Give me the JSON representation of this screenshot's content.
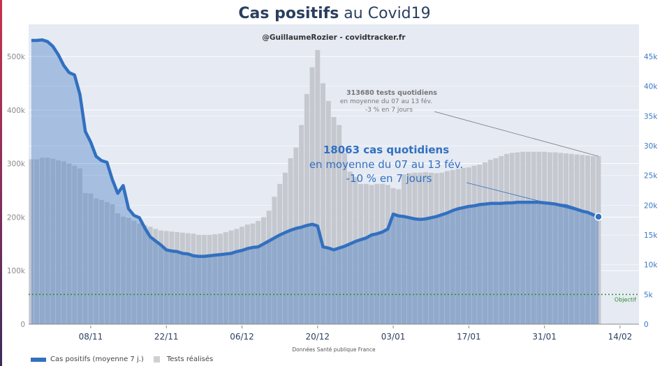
{
  "title": {
    "bold": "Cas positifs",
    "rest": " au Covid19"
  },
  "subtitle": "@GuillaumeRozier - covidtracker.fr",
  "source": "Données Santé publique France",
  "colors": {
    "cases_line": "#3270c0",
    "cases_fill": "#a9c1df",
    "tests_bar": "#c5c8cf",
    "plot_bg": "#e5eaf3",
    "objective": "#2e8b2e",
    "title": "#2a3f5f",
    "right_axis": "#3a78c2",
    "left_axis": "#8a8a8a"
  },
  "annotations": {
    "tests": {
      "line1": "313680 tests quotidiens",
      "line2": "en moyenne du 07 au 13 fév.",
      "line3": "-3 % en 7 jours"
    },
    "cases": {
      "line1": "18063 cas quotidiens",
      "line2": "en moyenne du 07 au 13 fév.",
      "line3": "-10 % en 7 jours"
    },
    "objective": "Objectif"
  },
  "legend": [
    {
      "label": "Cas positifs (moyenne 7 j.)"
    },
    {
      "label": "Tests réalisés"
    }
  ],
  "chart_data": {
    "type": "bar+line",
    "title": "Cas positifs au Covid19",
    "subtitle": "@GuillaumeRozier - covidtracker.fr",
    "xlabel": "Données Santé publique France",
    "x_start": "28/10",
    "x_ticks": [
      "08/11",
      "22/11",
      "06/12",
      "20/12",
      "03/01",
      "17/01",
      "31/01",
      "14/02"
    ],
    "x_tick_day_index": [
      11,
      25,
      39,
      53,
      67,
      81,
      95,
      109
    ],
    "x_range_days": [
      0,
      113
    ],
    "y_left": {
      "ticks": [
        "0",
        "100k",
        "200k",
        "300k",
        "400k",
        "500k"
      ],
      "tick_values": [
        0,
        100000,
        200000,
        300000,
        400000,
        500000
      ],
      "range": [
        0,
        560000
      ]
    },
    "y_right": {
      "ticks": [
        "0",
        "5k",
        "10k",
        "15k",
        "20k",
        "25k",
        "30k",
        "35k",
        "40k",
        "45k"
      ],
      "tick_values": [
        0,
        5000,
        10000,
        15000,
        20000,
        25000,
        30000,
        35000,
        40000,
        45000
      ],
      "range": [
        0,
        50400
      ]
    },
    "objective": 5000,
    "series": [
      {
        "name": "Tests réalisés",
        "type": "bar",
        "axis": "left",
        "values": [
          308000,
          308000,
          311000,
          311000,
          309000,
          306000,
          304000,
          300000,
          296000,
          291000,
          245000,
          244000,
          235000,
          232000,
          228000,
          224000,
          207000,
          201000,
          199000,
          193000,
          188000,
          185000,
          182000,
          178000,
          175000,
          174000,
          173000,
          172000,
          171000,
          170000,
          169000,
          167000,
          167000,
          167000,
          168000,
          169000,
          172000,
          175000,
          178000,
          182000,
          186000,
          188000,
          193000,
          200000,
          212000,
          238000,
          262000,
          283000,
          310000,
          330000,
          372000,
          430000,
          480000,
          512000,
          450000,
          417000,
          387000,
          372000,
          320000,
          285000,
          275000,
          262000,
          262000,
          260000,
          262000,
          262000,
          260000,
          254000,
          252000,
          280000,
          282000,
          283000,
          283000,
          284000,
          283000,
          282000,
          283000,
          286000,
          288000,
          290000,
          292000,
          293000,
          296000,
          298000,
          302000,
          307000,
          310000,
          314000,
          318000,
          320000,
          321000,
          322000,
          322000,
          322000,
          322000,
          322000,
          321000,
          321000,
          320000,
          319000,
          318000,
          317000,
          316000,
          315000,
          314000,
          313680
        ]
      },
      {
        "name": "Cas positifs (moyenne 7 j.)",
        "type": "line",
        "axis": "right",
        "values": [
          47700,
          47700,
          47800,
          47500,
          46700,
          45300,
          43500,
          42300,
          41900,
          38600,
          32400,
          30600,
          28200,
          27500,
          27200,
          24300,
          22000,
          23300,
          19400,
          18300,
          17900,
          16200,
          14700,
          14000,
          13300,
          12500,
          12300,
          12200,
          11900,
          11800,
          11500,
          11400,
          11400,
          11500,
          11600,
          11700,
          11800,
          11900,
          12200,
          12400,
          12700,
          12900,
          13000,
          13500,
          14000,
          14500,
          15000,
          15400,
          15800,
          16100,
          16300,
          16600,
          16800,
          16500,
          13000,
          12800,
          12500,
          12800,
          13100,
          13500,
          13900,
          14200,
          14500,
          15000,
          15200,
          15500,
          16000,
          18500,
          18200,
          18100,
          17900,
          17700,
          17600,
          17700,
          17900,
          18100,
          18400,
          18700,
          19100,
          19400,
          19600,
          19800,
          19900,
          20100,
          20200,
          20300,
          20300,
          20300,
          20400,
          20400,
          20500,
          20500,
          20500,
          20500,
          20500,
          20400,
          20300,
          20200,
          20000,
          19900,
          19600,
          19300,
          19000,
          18800,
          18400,
          18063
        ]
      }
    ]
  }
}
